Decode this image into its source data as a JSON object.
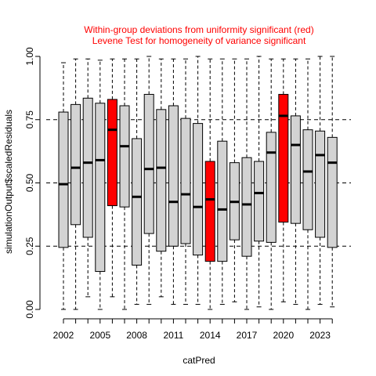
{
  "chart_data": {
    "type": "boxplot",
    "title_lines": [
      "Within-group deviations from uniformity significant (red)",
      "Levene Test for homogeneity of variance significant"
    ],
    "xlabel": "catPred",
    "ylabel": "simulationOutput$scaledResiduals",
    "ylim": [
      0,
      1
    ],
    "y_ticks": [
      "0.00",
      "0.25",
      "0.50",
      "0.75",
      "1.00"
    ],
    "y_tick_values": [
      0,
      0.25,
      0.5,
      0.75,
      1
    ],
    "x_tick_labels": [
      "2002",
      "2005",
      "2008",
      "2011",
      "2014",
      "2017",
      "2020",
      "2023"
    ],
    "x_tick_categories": [
      2002,
      2005,
      2008,
      2011,
      2014,
      2017,
      2020,
      2023
    ],
    "reference_lines": [
      0.25,
      0.5,
      0.75
    ],
    "colors": {
      "normal": "#d3d3d3",
      "significant": "#ff0000",
      "reference": "#000000"
    },
    "categories": [
      2002,
      2003,
      2004,
      2005,
      2006,
      2007,
      2008,
      2009,
      2010,
      2011,
      2012,
      2013,
      2014,
      2015,
      2016,
      2017,
      2018,
      2019,
      2020,
      2021,
      2022,
      2023,
      2024
    ],
    "boxes": [
      {
        "category": 2002,
        "min": 0.0,
        "q1": 0.245,
        "median": 0.495,
        "q3": 0.78,
        "max": 0.975,
        "significant": false
      },
      {
        "category": 2003,
        "min": 0.0,
        "q1": 0.335,
        "median": 0.56,
        "q3": 0.81,
        "max": 0.99,
        "significant": false
      },
      {
        "category": 2004,
        "min": 0.05,
        "q1": 0.285,
        "median": 0.58,
        "q3": 0.835,
        "max": 0.99,
        "significant": false
      },
      {
        "category": 2005,
        "min": 0.0,
        "q1": 0.15,
        "median": 0.59,
        "q3": 0.815,
        "max": 0.985,
        "significant": false
      },
      {
        "category": 2006,
        "min": 0.05,
        "q1": 0.41,
        "median": 0.71,
        "q3": 0.83,
        "max": 0.99,
        "significant": true
      },
      {
        "category": 2007,
        "min": 0.0,
        "q1": 0.405,
        "median": 0.645,
        "q3": 0.805,
        "max": 0.99,
        "significant": false
      },
      {
        "category": 2008,
        "min": 0.02,
        "q1": 0.175,
        "median": 0.445,
        "q3": 0.675,
        "max": 0.99,
        "significant": false
      },
      {
        "category": 2009,
        "min": 0.02,
        "q1": 0.3,
        "median": 0.555,
        "q3": 0.85,
        "max": 1.0,
        "significant": false
      },
      {
        "category": 2010,
        "min": 0.05,
        "q1": 0.23,
        "median": 0.56,
        "q3": 0.79,
        "max": 0.99,
        "significant": false
      },
      {
        "category": 2011,
        "min": 0.02,
        "q1": 0.25,
        "median": 0.425,
        "q3": 0.805,
        "max": 0.99,
        "significant": false
      },
      {
        "category": 2012,
        "min": 0.02,
        "q1": 0.26,
        "median": 0.455,
        "q3": 0.755,
        "max": 0.99,
        "significant": false
      },
      {
        "category": 2013,
        "min": 0.02,
        "q1": 0.215,
        "median": 0.405,
        "q3": 0.735,
        "max": 1.0,
        "significant": false
      },
      {
        "category": 2014,
        "min": 0.0,
        "q1": 0.19,
        "median": 0.435,
        "q3": 0.585,
        "max": 0.99,
        "significant": true
      },
      {
        "category": 2015,
        "min": 0.02,
        "q1": 0.19,
        "median": 0.395,
        "q3": 0.665,
        "max": 0.99,
        "significant": false
      },
      {
        "category": 2016,
        "min": 0.03,
        "q1": 0.275,
        "median": 0.425,
        "q3": 0.58,
        "max": 0.99,
        "significant": false
      },
      {
        "category": 2017,
        "min": 0.0,
        "q1": 0.21,
        "median": 0.415,
        "q3": 0.6,
        "max": 0.99,
        "significant": false
      },
      {
        "category": 2018,
        "min": 0.01,
        "q1": 0.27,
        "median": 0.46,
        "q3": 0.585,
        "max": 1.0,
        "significant": false
      },
      {
        "category": 2019,
        "min": 0.0,
        "q1": 0.265,
        "median": 0.62,
        "q3": 0.7,
        "max": 0.99,
        "significant": false
      },
      {
        "category": 2020,
        "min": 0.03,
        "q1": 0.345,
        "median": 0.765,
        "q3": 0.85,
        "max": 0.99,
        "significant": true
      },
      {
        "category": 2021,
        "min": 0.02,
        "q1": 0.34,
        "median": 0.65,
        "q3": 0.765,
        "max": 0.99,
        "significant": false
      },
      {
        "category": 2022,
        "min": 0.0,
        "q1": 0.315,
        "median": 0.545,
        "q3": 0.71,
        "max": 0.99,
        "significant": false
      },
      {
        "category": 2023,
        "min": 0.02,
        "q1": 0.285,
        "median": 0.61,
        "q3": 0.705,
        "max": 1.0,
        "significant": false
      },
      {
        "category": 2024,
        "min": 0.01,
        "q1": 0.245,
        "median": 0.58,
        "q3": 0.68,
        "max": 1.0,
        "significant": false
      }
    ]
  }
}
